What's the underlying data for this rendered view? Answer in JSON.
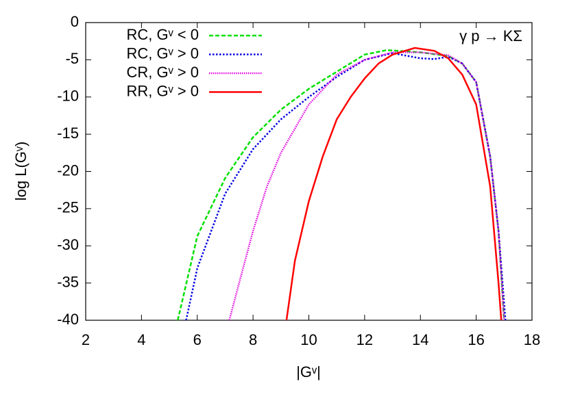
{
  "chart_data": {
    "type": "line",
    "xlabel": "|Gᵛ|",
    "ylabel": "log L(Gᵛ)",
    "annotation": "γ p → KΣ",
    "xlim": [
      2,
      18
    ],
    "xticks": [
      2,
      4,
      6,
      8,
      10,
      12,
      14,
      16,
      18
    ],
    "ylim": [
      -40,
      0
    ],
    "yticks": [
      0,
      -5,
      -10,
      -15,
      -20,
      -25,
      -30,
      -35,
      -40
    ],
    "legend": "top-left",
    "series": [
      {
        "name": "RC, Gᵛ < 0",
        "color": "#00e000",
        "x": [
          5.3,
          6,
          7,
          8,
          9,
          10,
          11,
          12,
          12.8,
          14,
          15,
          15.5,
          16,
          16.5,
          16.8,
          17.0
        ],
        "values": [
          -40,
          -28.7,
          -20.9,
          -15.4,
          -11.7,
          -8.9,
          -6.6,
          -4.3,
          -3.7,
          -4.0,
          -4.5,
          -5.5,
          -8,
          -18,
          -28,
          -40
        ]
      },
      {
        "name": "RC, Gᵛ > 0",
        "color": "#0000e0",
        "x": [
          5.6,
          6,
          7,
          8,
          9,
          10,
          11,
          12,
          13,
          14,
          14.5,
          15,
          15.5,
          16,
          16.5,
          16.8,
          17.05
        ],
        "values": [
          -40,
          -33,
          -23,
          -17,
          -13,
          -10,
          -7.3,
          -5,
          -4.1,
          -4.8,
          -4.9,
          -4.6,
          -5.5,
          -8,
          -18,
          -28,
          -40
        ]
      },
      {
        "name": "CR, Gᵛ > 0",
        "color": "#e000e0",
        "x": [
          7.15,
          7.5,
          8,
          8.5,
          9,
          10,
          11,
          12,
          13,
          14,
          15,
          15.5,
          16,
          16.5,
          16.8,
          17.0
        ],
        "values": [
          -40,
          -35,
          -28,
          -22,
          -17.5,
          -11,
          -7,
          -5,
          -4.0,
          -4.0,
          -4.4,
          -5.5,
          -8,
          -18,
          -28,
          -40
        ]
      },
      {
        "name": "RR, Gᵛ > 0",
        "color": "#ff0000",
        "x": [
          9.2,
          9.5,
          10,
          10.5,
          11,
          11.5,
          12,
          12.5,
          13,
          13.8,
          14.5,
          15,
          15.5,
          16,
          16.5,
          16.8,
          16.9
        ],
        "values": [
          -40,
          -32,
          -24,
          -18,
          -13,
          -10,
          -7.5,
          -5.5,
          -4.3,
          -3.4,
          -3.8,
          -4.8,
          -7,
          -11,
          -22,
          -35,
          -40
        ]
      }
    ]
  }
}
